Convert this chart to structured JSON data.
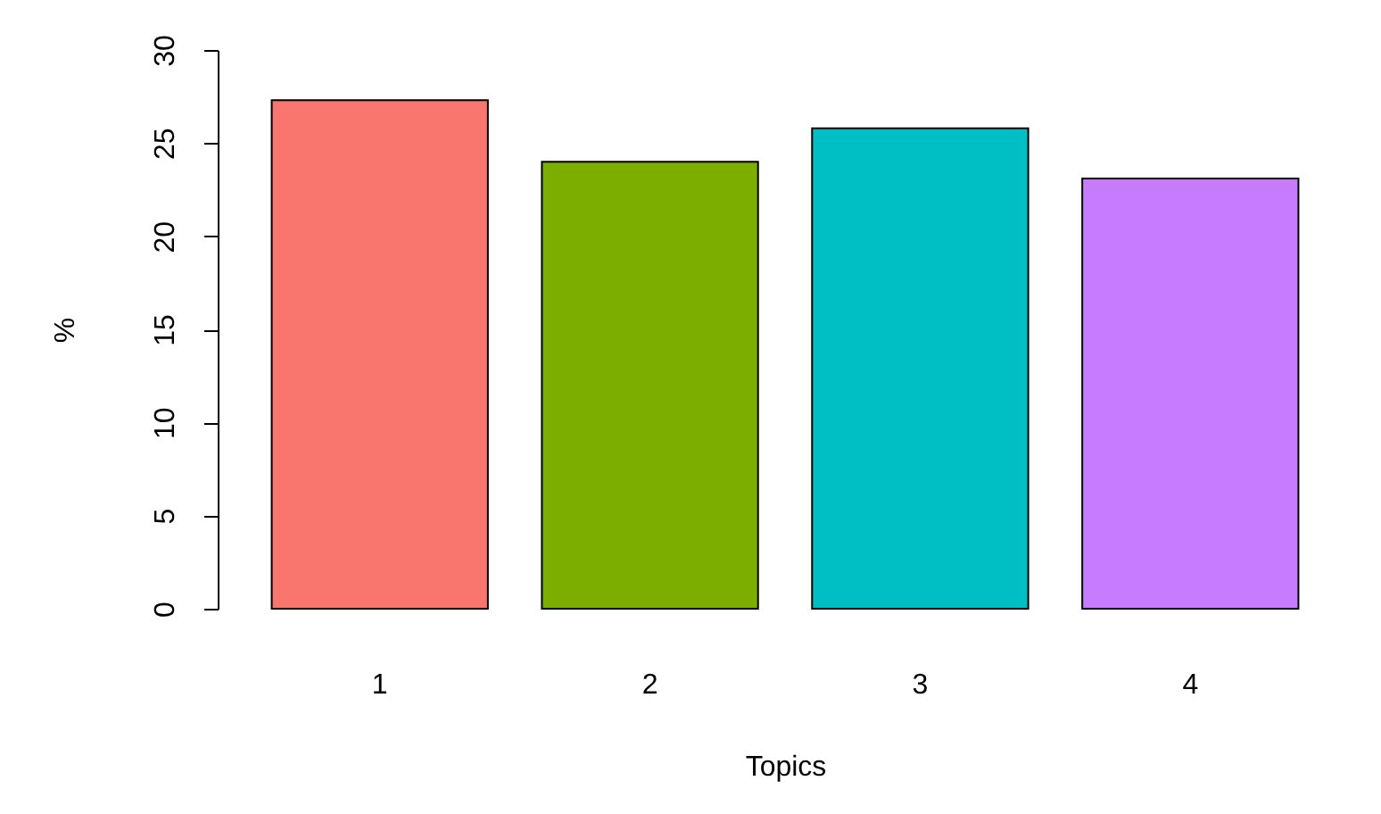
{
  "chart_data": {
    "type": "bar",
    "xlabel": "Topics",
    "ylabel": "%",
    "categories": [
      "1",
      "2",
      "3",
      "4"
    ],
    "colors": [
      "#f8766d",
      "#7cae00",
      "#00bfc4",
      "#c77cff"
    ],
    "values": [
      27.3,
      24.0,
      25.8,
      23.1
    ],
    "ylim": [
      0,
      30
    ],
    "yticks": [
      0,
      5,
      10,
      15,
      20,
      25,
      30
    ],
    "grid": false
  }
}
